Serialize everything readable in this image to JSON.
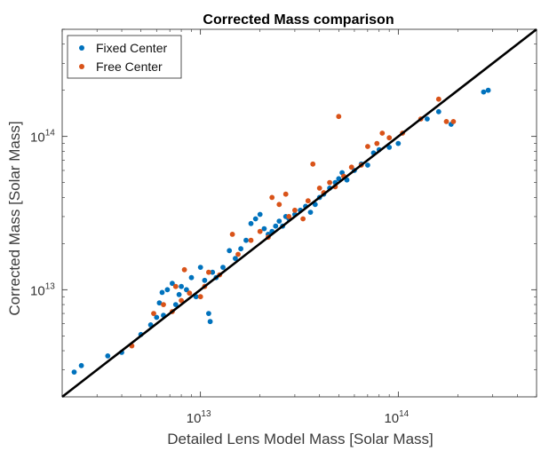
{
  "chart_data": {
    "type": "scatter",
    "title": "Corrected Mass comparison",
    "xlabel": "Detailed Lens Model Mass [Solar Mass]",
    "ylabel": "Corrected Mass [Solar Mass]",
    "xscale": "log",
    "yscale": "log",
    "xlim": [
      2000000000000.0,
      500000000000000.0
    ],
    "ylim": [
      2000000000000.0,
      500000000000000.0
    ],
    "x_ticks": [
      {
        "value": 10000000000000.0,
        "base": "10",
        "exp": "13"
      },
      {
        "value": 100000000000000.0,
        "base": "10",
        "exp": "14"
      }
    ],
    "y_ticks": [
      {
        "value": 10000000000000.0,
        "base": "10",
        "exp": "13"
      },
      {
        "value": 100000000000000.0,
        "base": "10",
        "exp": "14"
      }
    ],
    "grid": false,
    "legend_position": "top-left",
    "reference_line": {
      "from": [
        2000000000000.0,
        2000000000000.0
      ],
      "to": [
        500000000000000.0,
        500000000000000.0
      ],
      "color": "#000000"
    },
    "series": [
      {
        "name": "Fixed Center",
        "color": "#0072BD",
        "points": [
          [
            2300000000000.0,
            2900000000000.0
          ],
          [
            2500000000000.0,
            3200000000000.0
          ],
          [
            3400000000000.0,
            3700000000000.0
          ],
          [
            4000000000000.0,
            3900000000000.0
          ],
          [
            5000000000000.0,
            5100000000000.0
          ],
          [
            5600000000000.0,
            5900000000000.0
          ],
          [
            6000000000000.0,
            6600000000000.0
          ],
          [
            6500000000000.0,
            6800000000000.0
          ],
          [
            6200000000000.0,
            8200000000000.0
          ],
          [
            6400000000000.0,
            9600000000000.0
          ],
          [
            6800000000000.0,
            10000000000000.0
          ],
          [
            7200000000000.0,
            11000000000000.0
          ],
          [
            7500000000000.0,
            8000000000000.0
          ],
          [
            7800000000000.0,
            9300000000000.0
          ],
          [
            8000000000000.0,
            10500000000000.0
          ],
          [
            8500000000000.0,
            10000000000000.0
          ],
          [
            9000000000000.0,
            12000000000000.0
          ],
          [
            9500000000000.0,
            9000000000000.0
          ],
          [
            10000000000000.0,
            14000000000000.0
          ],
          [
            10500000000000.0,
            11500000000000.0
          ],
          [
            11000000000000.0,
            7000000000000.0
          ],
          [
            11200000000000.0,
            6200000000000.0
          ],
          [
            11500000000000.0,
            13000000000000.0
          ],
          [
            12000000000000.0,
            12000000000000.0
          ],
          [
            13000000000000.0,
            14000000000000.0
          ],
          [
            14000000000000.0,
            18000000000000.0
          ],
          [
            15000000000000.0,
            16000000000000.0
          ],
          [
            16000000000000.0,
            18500000000000.0
          ],
          [
            17000000000000.0,
            21000000000000.0
          ],
          [
            18000000000000.0,
            27000000000000.0
          ],
          [
            19000000000000.0,
            29000000000000.0
          ],
          [
            20000000000000.0,
            31000000000000.0
          ],
          [
            21000000000000.0,
            25000000000000.0
          ],
          [
            22000000000000.0,
            23000000000000.0
          ],
          [
            23000000000000.0,
            24000000000000.0
          ],
          [
            24000000000000.0,
            26000000000000.0
          ],
          [
            25000000000000.0,
            28000000000000.0
          ],
          [
            26000000000000.0,
            26000000000000.0
          ],
          [
            27000000000000.0,
            30000000000000.0
          ],
          [
            28000000000000.0,
            29000000000000.0
          ],
          [
            30000000000000.0,
            31000000000000.0
          ],
          [
            32000000000000.0,
            33000000000000.0
          ],
          [
            34000000000000.0,
            35000000000000.0
          ],
          [
            36000000000000.0,
            32000000000000.0
          ],
          [
            38000000000000.0,
            36000000000000.0
          ],
          [
            40000000000000.0,
            40000000000000.0
          ],
          [
            42000000000000.0,
            42000000000000.0
          ],
          [
            45000000000000.0,
            46000000000000.0
          ],
          [
            48000000000000.0,
            50000000000000.0
          ],
          [
            50000000000000.0,
            53000000000000.0
          ],
          [
            52000000000000.0,
            58000000000000.0
          ],
          [
            55000000000000.0,
            52000000000000.0
          ],
          [
            60000000000000.0,
            60000000000000.0
          ],
          [
            65000000000000.0,
            66000000000000.0
          ],
          [
            70000000000000.0,
            65000000000000.0
          ],
          [
            75000000000000.0,
            78000000000000.0
          ],
          [
            80000000000000.0,
            82000000000000.0
          ],
          [
            90000000000000.0,
            85000000000000.0
          ],
          [
            100000000000000.0,
            90000000000000.0
          ],
          [
            140000000000000.0,
            130000000000000.0
          ],
          [
            160000000000000.0,
            145000000000000.0
          ],
          [
            185000000000000.0,
            120000000000000.0
          ],
          [
            270000000000000.0,
            195000000000000.0
          ],
          [
            285000000000000.0,
            200000000000000.0
          ]
        ]
      },
      {
        "name": "Free Center",
        "color": "#D95319",
        "points": [
          [
            4500000000000.0,
            4300000000000.0
          ],
          [
            5800000000000.0,
            7000000000000.0
          ],
          [
            6500000000000.0,
            8000000000000.0
          ],
          [
            7200000000000.0,
            7200000000000.0
          ],
          [
            7500000000000.0,
            10500000000000.0
          ],
          [
            8000000000000.0,
            8500000000000.0
          ],
          [
            8300000000000.0,
            13500000000000.0
          ],
          [
            8800000000000.0,
            9500000000000.0
          ],
          [
            10000000000000.0,
            9000000000000.0
          ],
          [
            10500000000000.0,
            10500000000000.0
          ],
          [
            11000000000000.0,
            13000000000000.0
          ],
          [
            12500000000000.0,
            12500000000000.0
          ],
          [
            14500000000000.0,
            23000000000000.0
          ],
          [
            15500000000000.0,
            17000000000000.0
          ],
          [
            18000000000000.0,
            21000000000000.0
          ],
          [
            20000000000000.0,
            24000000000000.0
          ],
          [
            22000000000000.0,
            22000000000000.0
          ],
          [
            23000000000000.0,
            40000000000000.0
          ],
          [
            25000000000000.0,
            36000000000000.0
          ],
          [
            27000000000000.0,
            42000000000000.0
          ],
          [
            28000000000000.0,
            30000000000000.0
          ],
          [
            30000000000000.0,
            33000000000000.0
          ],
          [
            33000000000000.0,
            29000000000000.0
          ],
          [
            35000000000000.0,
            38000000000000.0
          ],
          [
            37000000000000.0,
            66000000000000.0
          ],
          [
            40000000000000.0,
            46000000000000.0
          ],
          [
            42000000000000.0,
            43000000000000.0
          ],
          [
            45000000000000.0,
            50000000000000.0
          ],
          [
            48000000000000.0,
            47000000000000.0
          ],
          [
            50000000000000.0,
            135000000000000.0
          ],
          [
            53000000000000.0,
            55000000000000.0
          ],
          [
            58000000000000.0,
            63000000000000.0
          ],
          [
            65000000000000.0,
            65000000000000.0
          ],
          [
            70000000000000.0,
            86000000000000.0
          ],
          [
            78000000000000.0,
            90000000000000.0
          ],
          [
            83000000000000.0,
            105000000000000.0
          ],
          [
            90000000000000.0,
            98000000000000.0
          ],
          [
            105000000000000.0,
            105000000000000.0
          ],
          [
            130000000000000.0,
            130000000000000.0
          ],
          [
            160000000000000.0,
            175000000000000.0
          ],
          [
            175000000000000.0,
            125000000000000.0
          ],
          [
            190000000000000.0,
            125000000000000.0
          ]
        ]
      }
    ]
  }
}
